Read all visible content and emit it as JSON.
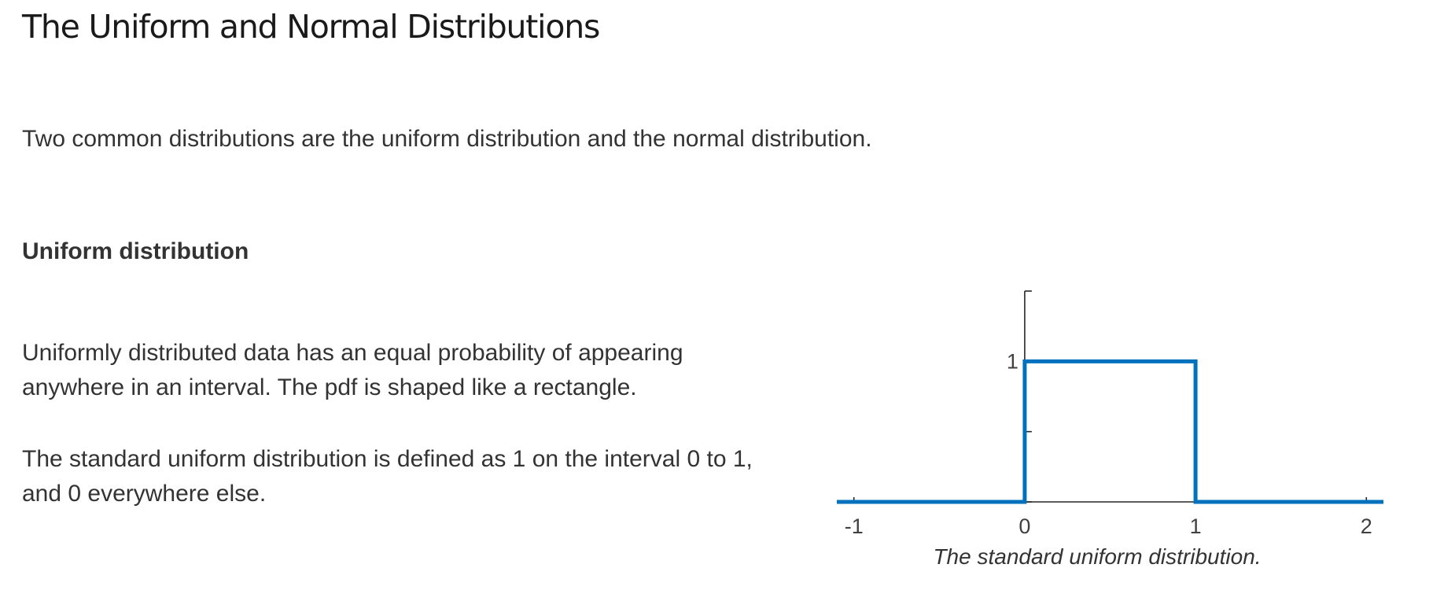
{
  "page": {
    "title": "The Uniform and Normal Distributions",
    "intro": "Two common distributions are the uniform distribution and the normal distribution.",
    "section_heading": "Uniform distribution",
    "paragraph_1": "Uniformly distributed data has an equal probability of appearing anywhere in an interval. The pdf is shaped like a rectangle.",
    "paragraph_2": "The standard uniform distribution is defined as 1 on the interval 0 to 1, and 0 everywhere else.",
    "figure_caption": "The standard uniform distribution."
  },
  "colors": {
    "line": "#0072BD",
    "axis": "#262626",
    "text": "#333333"
  },
  "chart_data": {
    "type": "line",
    "title": "",
    "xlabel": "",
    "ylabel": "",
    "xlim": [
      -1.1,
      2.1
    ],
    "ylim": [
      0,
      1.5
    ],
    "x_ticks": [
      -1,
      0,
      1,
      2
    ],
    "x_tick_labels": [
      "-1",
      "0",
      "1",
      "2"
    ],
    "y_ticks": [
      0,
      0.5,
      1,
      1.5
    ],
    "y_tick_labels": [
      "",
      "",
      "1",
      ""
    ],
    "grid": false,
    "series": [
      {
        "x": [
          -1.1,
          0,
          0,
          1,
          1,
          2.1
        ],
        "y": [
          0,
          0,
          1,
          1,
          0,
          0
        ]
      }
    ]
  }
}
